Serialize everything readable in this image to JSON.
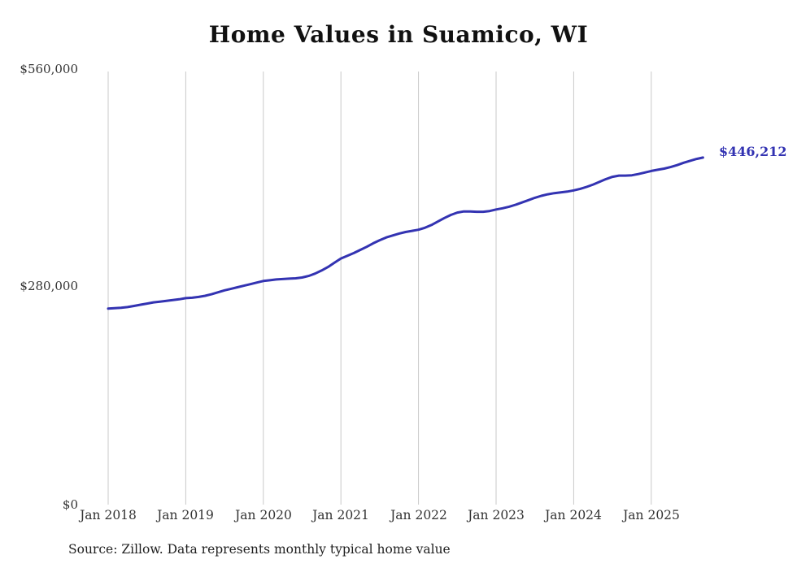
{
  "title": "Home Values in Suamico, WI",
  "source_note": "Source: Zillow. Data represents monthly typical home value",
  "end_label": "$446,212",
  "colors": {
    "line": "#3333b2",
    "end_label": "#3333b2",
    "grid": "#c9c9c9",
    "text": "#333333"
  },
  "chart_data": {
    "type": "line",
    "title": "Home Values in Suamico, WI",
    "xlabel": "",
    "ylabel": "",
    "ylim": [
      0,
      560000
    ],
    "grid": "vertical-only",
    "legend": "none",
    "y_tick_labels": [
      "$560,000",
      "$280,000",
      "$0"
    ],
    "y_tick_values": [
      560000,
      280000,
      0
    ],
    "x_tick_labels": [
      "Jan 2018",
      "Jan 2019",
      "Jan 2020",
      "Jan 2021",
      "Jan 2022",
      "Jan 2023",
      "Jan 2024",
      "Jan 2025"
    ],
    "x_start": "2018-01",
    "x_end": "2025-09",
    "x_frequency": "monthly",
    "series": [
      {
        "name": "Typical home value",
        "final_value": 446212,
        "final_value_label": "$446,212",
        "values": [
          252000,
          252500,
          253000,
          254000,
          255500,
          257000,
          258500,
          260000,
          261000,
          262000,
          263000,
          264000,
          265500,
          266000,
          267000,
          268500,
          270500,
          273000,
          275500,
          277500,
          279500,
          281500,
          283500,
          285500,
          287500,
          288500,
          289500,
          290000,
          290500,
          291000,
          292000,
          294000,
          297000,
          301000,
          305500,
          311000,
          316500,
          320000,
          323500,
          327500,
          331500,
          336000,
          340000,
          343500,
          346000,
          348500,
          350500,
          352000,
          353500,
          356000,
          359500,
          364000,
          368500,
          372500,
          375500,
          377000,
          377000,
          376500,
          376500,
          377500,
          379500,
          381000,
          383000,
          385500,
          388500,
          391500,
          394500,
          397000,
          399000,
          400500,
          401500,
          402500,
          404000,
          406000,
          408500,
          411500,
          415000,
          418500,
          421500,
          423000,
          423000,
          423500,
          425000,
          427000,
          429000,
          430500,
          432000,
          434000,
          436500,
          439500,
          442000,
          444500,
          446212
        ]
      }
    ]
  }
}
